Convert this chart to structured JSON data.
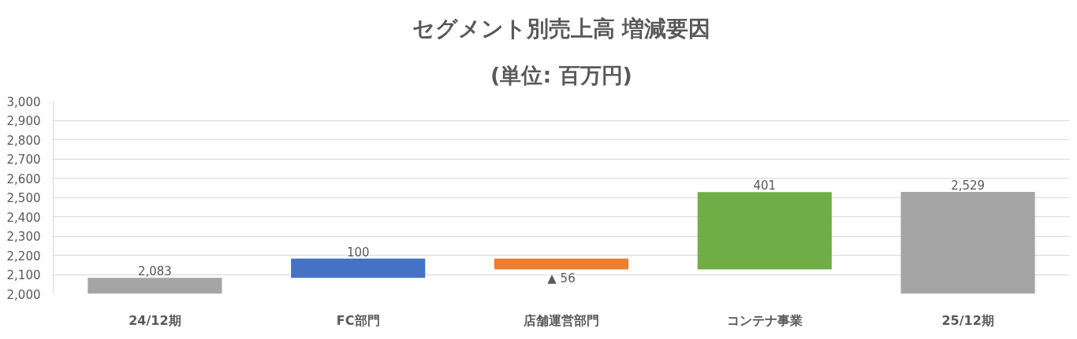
{
  "chart_data": {
    "type": "bar",
    "title": "セグメント別売上高 増減要因",
    "subtitle": "(単位: 百万円)",
    "categories": [
      "24/12期",
      "FC部門",
      "店舗運営部門",
      "コンテナ事業",
      "25/12期"
    ],
    "values": [
      2083,
      100,
      -56,
      401,
      2529
    ],
    "base": [
      null,
      2083,
      2183,
      2127,
      null
    ],
    "colors": [
      "#a5a5a5",
      "#4472c4",
      "#ed7d31",
      "#70ad47",
      "#a5a5a5"
    ],
    "value_labels": [
      "2,083",
      "100",
      "▲ 56",
      "401",
      "2,529"
    ],
    "ylim": [
      2000,
      3000
    ],
    "yticks": [
      {
        "value": 2000,
        "label": "2,000"
      },
      {
        "value": 2100,
        "label": "2,100"
      },
      {
        "value": 2200,
        "label": "2,200"
      },
      {
        "value": 2300,
        "label": "2,300"
      },
      {
        "value": 2400,
        "label": "2,400"
      },
      {
        "value": 2500,
        "label": "2,500"
      },
      {
        "value": 2600,
        "label": "2,600"
      },
      {
        "value": 2700,
        "label": "2,700"
      },
      {
        "value": 2800,
        "label": "2,800"
      },
      {
        "value": 2900,
        "label": "2,900"
      },
      {
        "value": 3000,
        "label": "3,000"
      }
    ],
    "grid": "y"
  }
}
